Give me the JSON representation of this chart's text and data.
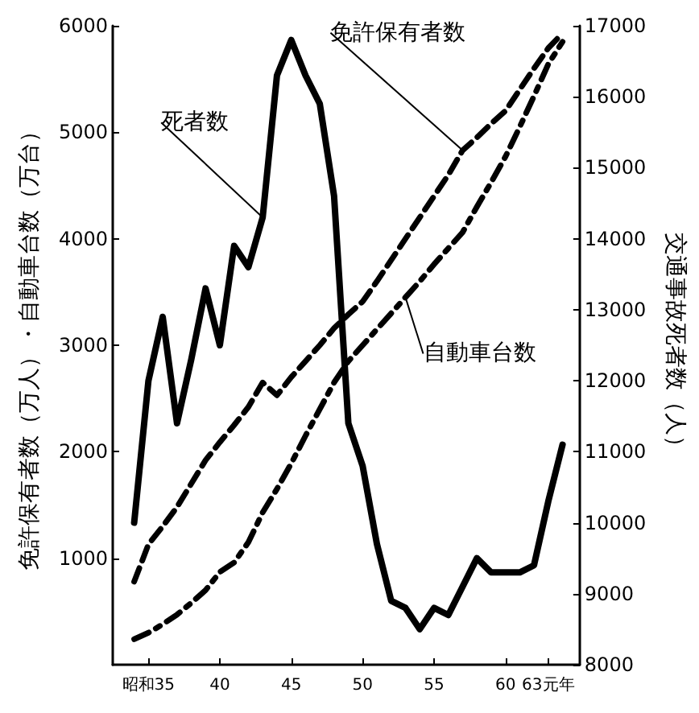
{
  "chart_data": {
    "type": "line",
    "xlabel": null,
    "ylabel": "免許保有者数（万人）・自動車台数（万台）",
    "y2label": "交通事故死者数（人）",
    "x": [
      34,
      35,
      36,
      37,
      38,
      39,
      40,
      41,
      42,
      43,
      44,
      45,
      46,
      47,
      48,
      49,
      50,
      51,
      52,
      53,
      54,
      55,
      56,
      57,
      58,
      59,
      60,
      61,
      62,
      63,
      64
    ],
    "series": [
      {
        "name": "死者数",
        "color": "#000000",
        "axis": "y2",
        "line_style": "solid",
        "values": [
          10000,
          12000,
          12900,
          11400,
          12300,
          13300,
          12500,
          13900,
          13600,
          14300,
          16300,
          16800,
          16300,
          15900,
          14600,
          11400,
          10800,
          9700,
          8900,
          8800,
          8500,
          8800,
          8700,
          9100,
          9500,
          9300,
          9300,
          9300,
          9400,
          10300,
          11100
        ]
      },
      {
        "name": "免許保有者数",
        "color": "#000000",
        "line_style": "dashed",
        "values": [
          780,
          1130,
          1300,
          1480,
          1700,
          1920,
          2090,
          2250,
          2420,
          2650,
          2530,
          2700,
          2850,
          3000,
          3160,
          3290,
          3410,
          3600,
          3800,
          4000,
          4200,
          4400,
          4600,
          4830,
          4950,
          5080,
          5200,
          5400,
          5600,
          5790,
          5930
        ]
      },
      {
        "name": "自動車台数",
        "color": "#000000",
        "line_style": "dashdot",
        "values": [
          240,
          300,
          380,
          470,
          580,
          700,
          870,
          960,
          1150,
          1430,
          1650,
          1890,
          2150,
          2400,
          2650,
          2850,
          3000,
          3150,
          3300,
          3450,
          3600,
          3760,
          3910,
          4060,
          4300,
          4530,
          4770,
          5050,
          5340,
          5640,
          5850
        ]
      }
    ],
    "xlim": [
      32.5,
      65.2
    ],
    "xticks": [
      {
        "value": 35,
        "label": "昭和35"
      },
      40,
      45,
      50,
      55,
      60,
      {
        "value": 63,
        "label": "63元年"
      }
    ],
    "ylim": [
      0,
      6000
    ],
    "yticks": [
      1000,
      2000,
      3000,
      4000,
      5000,
      6000
    ],
    "y2lim": [
      8000,
      17000
    ],
    "y2ticks": [
      8000,
      9000,
      10000,
      11000,
      12000,
      13000,
      14000,
      15000,
      16000,
      17000
    ],
    "grid": false,
    "legend": false,
    "marker": "none"
  }
}
